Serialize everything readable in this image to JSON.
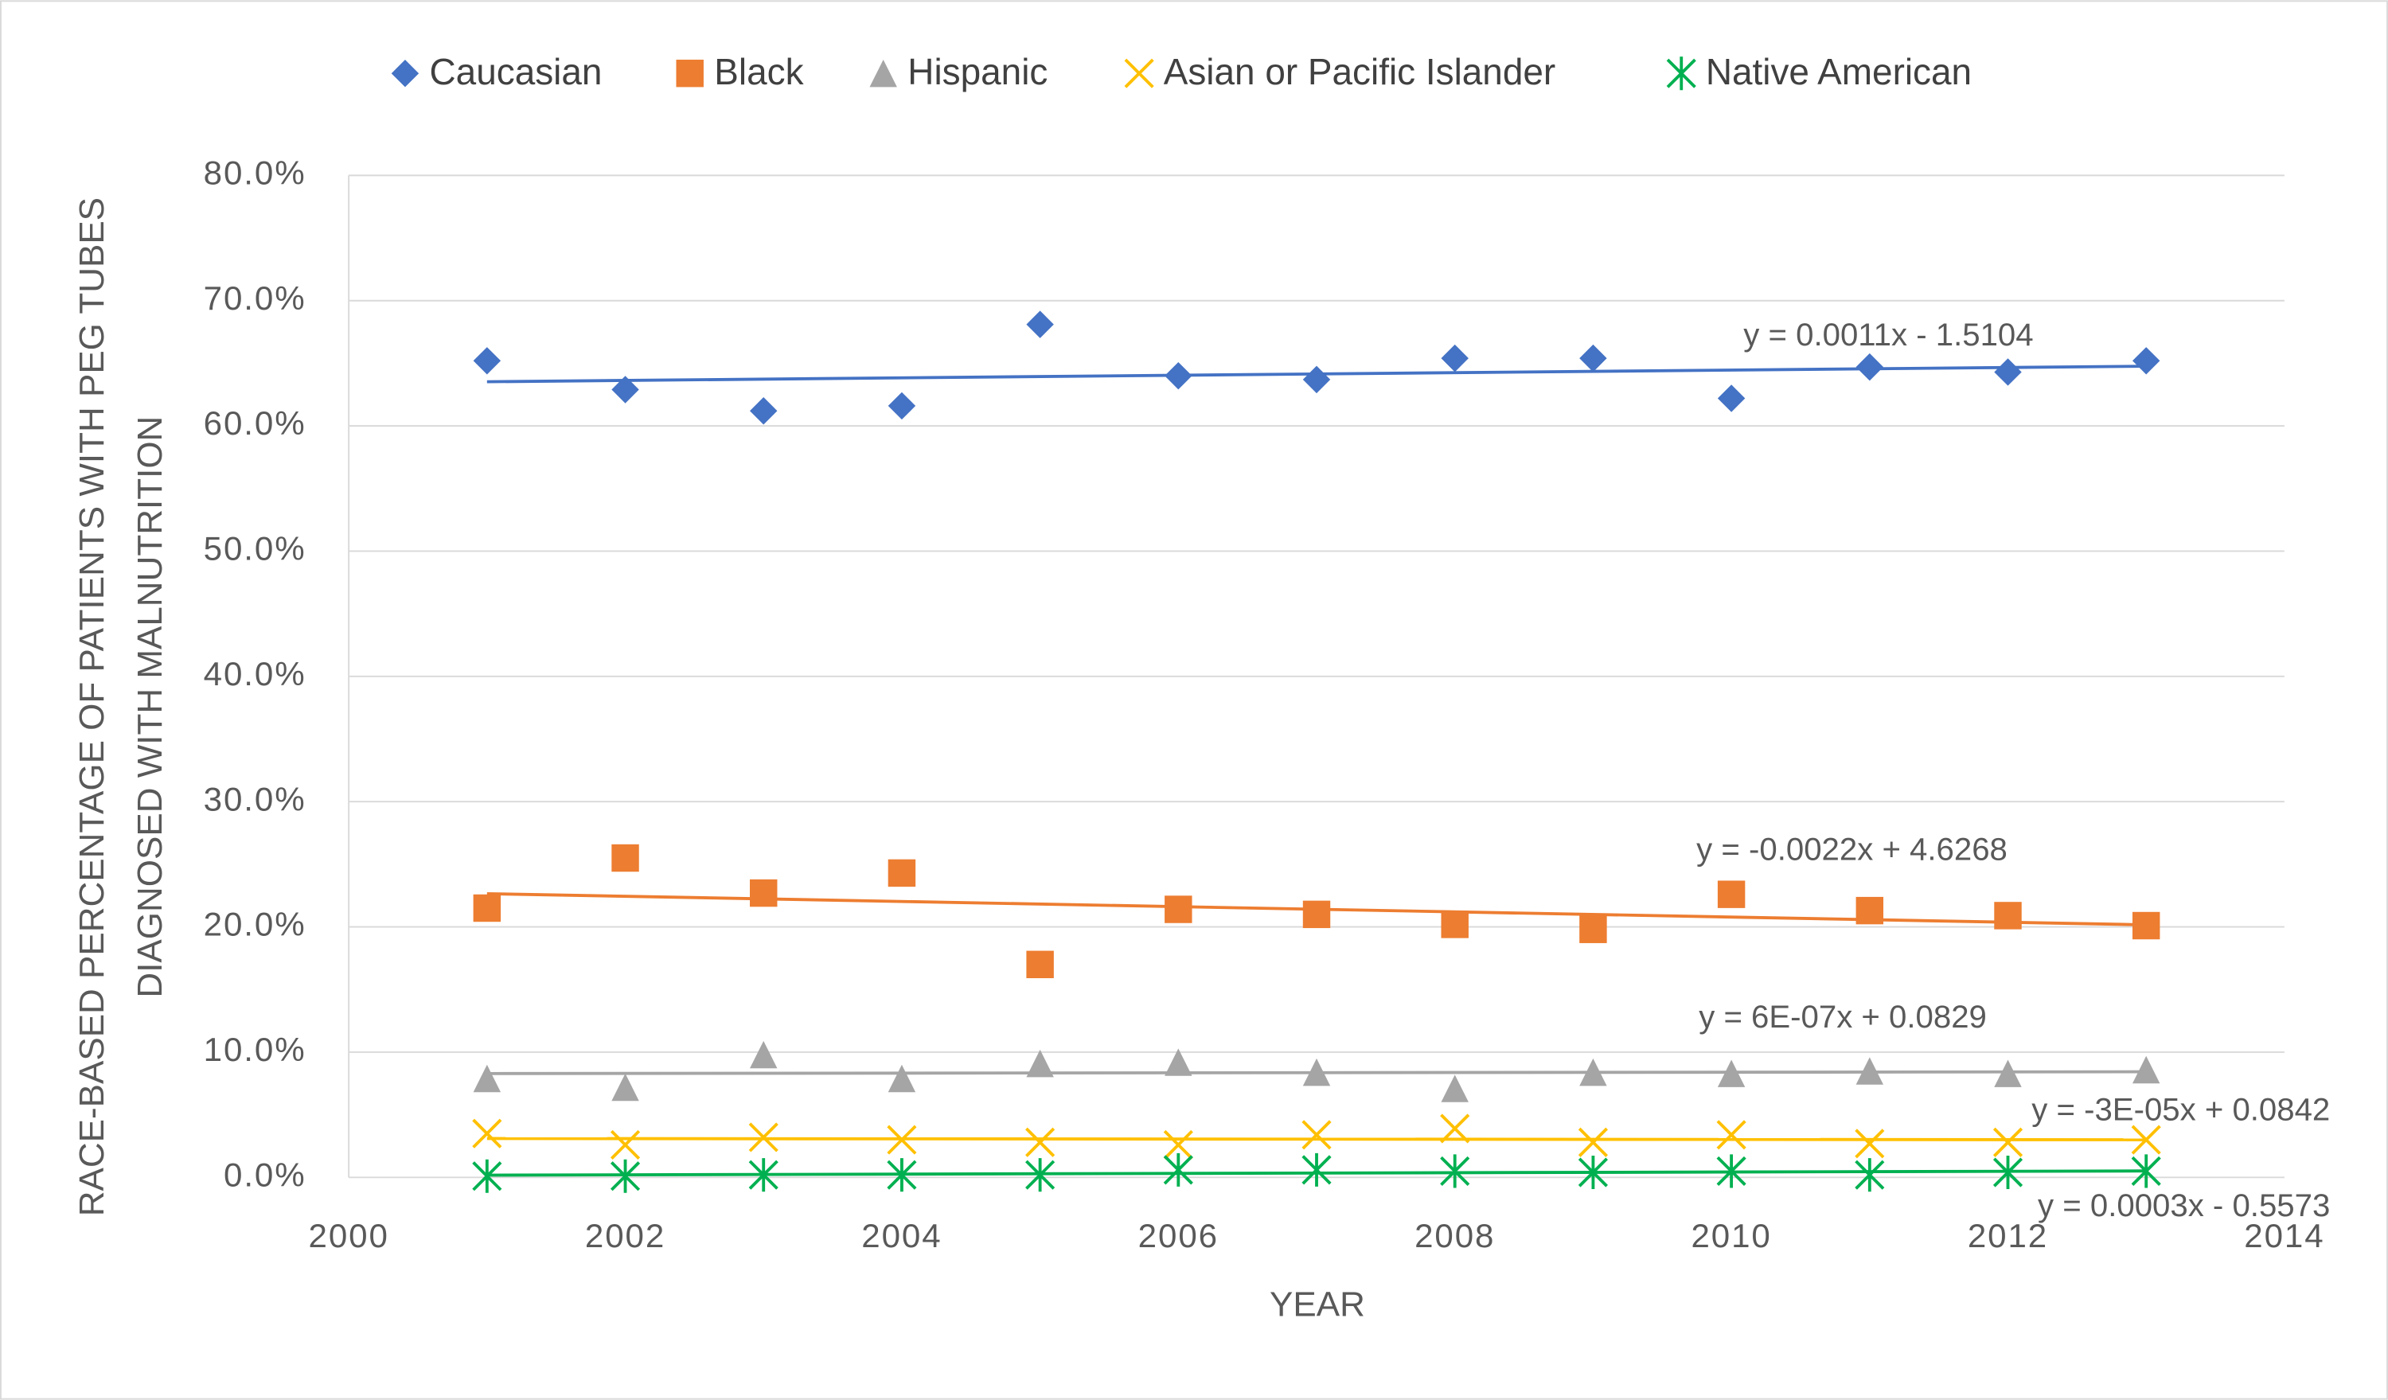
{
  "chart_data": {
    "type": "scatter",
    "x_label": "YEAR",
    "y_label": [
      "RACE-BASED PERCENTAGE OF PATIENTS WITH PEG TUBES",
      "DIAGNOSED WITH MALNUTRITION"
    ],
    "x": [
      2001,
      2002,
      2003,
      2004,
      2005,
      2006,
      2007,
      2008,
      2009,
      2010,
      2011,
      2012,
      2013
    ],
    "xlim": [
      2000,
      2014
    ],
    "xticks": [
      2000,
      2002,
      2004,
      2006,
      2008,
      2010,
      2012,
      2014
    ],
    "ylim": [
      0,
      80
    ],
    "yticks": [
      {
        "value": 0,
        "label": "0.0%"
      },
      {
        "value": 10,
        "label": "10.0%"
      },
      {
        "value": 20,
        "label": "20.0%"
      },
      {
        "value": 30,
        "label": "30.0%"
      },
      {
        "value": 40,
        "label": "40.0%"
      },
      {
        "value": 50,
        "label": "50.0%"
      },
      {
        "value": 60,
        "label": "60.0%"
      },
      {
        "value": 70,
        "label": "70.0%"
      },
      {
        "value": 80,
        "label": "80.0%"
      }
    ],
    "grid": true,
    "legend": "top",
    "series": [
      {
        "name": "Caucasian",
        "color": "#4472c4",
        "marker": "diamond",
        "trendline": "y = 0.0011x - 1.5104",
        "values": [
          65.2,
          62.9,
          61.2,
          61.6,
          68.1,
          64.0,
          63.7,
          65.4,
          65.4,
          62.2,
          64.7,
          64.3,
          65.2
        ]
      },
      {
        "name": "Black",
        "color": "#ed7d31",
        "marker": "square",
        "trendline": "y = -0.0022x + 4.6268",
        "values": [
          21.5,
          25.5,
          22.7,
          24.3,
          17.0,
          21.4,
          21.0,
          20.2,
          19.8,
          22.6,
          21.3,
          20.9,
          20.1
        ]
      },
      {
        "name": "Hispanic",
        "color": "#a5a5a5",
        "marker": "triangle",
        "trendline": "y = 6E-07x + 0.0829",
        "values": [
          7.9,
          7.2,
          9.8,
          7.9,
          9.1,
          9.2,
          8.4,
          7.1,
          8.4,
          8.3,
          8.5,
          8.3,
          8.6
        ]
      },
      {
        "name": "Asian or Pacific Islander",
        "color": "#ffc000",
        "marker": "x",
        "trendline": "y = -3E-05x + 0.0842",
        "values": [
          3.5,
          2.6,
          3.2,
          3.0,
          2.8,
          2.6,
          3.4,
          3.9,
          2.8,
          3.4,
          2.7,
          2.8,
          3.0
        ]
      },
      {
        "name": "Native American",
        "color": "#00b050",
        "marker": "star",
        "trendline": "y = 0.0003x - 0.5573",
        "values": [
          0.1,
          0.1,
          0.2,
          0.2,
          0.2,
          0.6,
          0.6,
          0.5,
          0.4,
          0.5,
          0.2,
          0.4,
          0.5
        ]
      }
    ]
  }
}
